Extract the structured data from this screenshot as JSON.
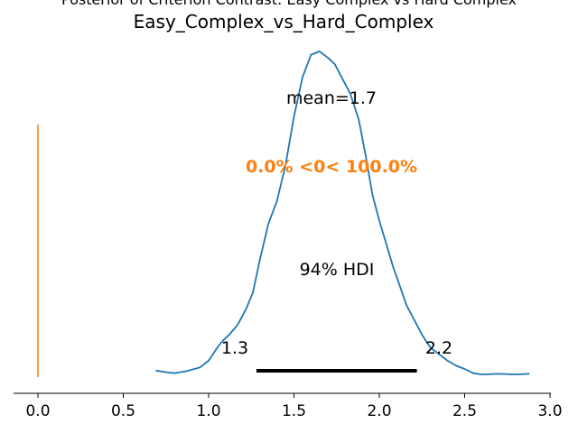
{
  "chart_data": {
    "type": "line",
    "suptitle": "Posterior of Criterion Contrast: Easy Complex vs Hard Complex",
    "title": "Easy_Complex_vs_Hard_Complex",
    "xlim": [
      -0.15,
      3.0
    ],
    "ylim": [
      0,
      1.0
    ],
    "x_ticks": [
      0.0,
      0.5,
      1.0,
      1.5,
      2.0,
      2.5,
      3.0
    ],
    "x_tick_labels": [
      "0.0",
      "0.5",
      "1.0",
      "1.5",
      "2.0",
      "2.5",
      "3.0"
    ],
    "series": [
      {
        "color": "#1f77b4",
        "x": [
          0.69,
          0.75,
          0.8,
          0.87,
          0.95,
          1.0,
          1.05,
          1.08,
          1.12,
          1.17,
          1.22,
          1.26,
          1.3,
          1.35,
          1.4,
          1.45,
          1.5,
          1.55,
          1.6,
          1.65,
          1.7,
          1.74,
          1.78,
          1.83,
          1.88,
          1.92,
          1.96,
          2.0,
          2.04,
          2.08,
          2.12,
          2.16,
          2.2,
          2.25,
          2.3,
          2.35,
          2.4,
          2.45,
          2.5,
          2.55,
          2.6,
          2.7,
          2.8,
          2.88
        ],
        "y": [
          0.02,
          0.015,
          0.012,
          0.018,
          0.03,
          0.05,
          0.09,
          0.11,
          0.13,
          0.16,
          0.21,
          0.26,
          0.36,
          0.47,
          0.54,
          0.65,
          0.8,
          0.92,
          0.99,
          1.0,
          0.98,
          0.96,
          0.92,
          0.87,
          0.79,
          0.68,
          0.56,
          0.48,
          0.41,
          0.34,
          0.28,
          0.22,
          0.18,
          0.13,
          0.09,
          0.07,
          0.05,
          0.035,
          0.025,
          0.012,
          0.008,
          0.01,
          0.008,
          0.01
        ]
      }
    ],
    "reference_line": {
      "x": 0.0,
      "color": "#ff7f0e"
    },
    "annotations": {
      "mean_label": "mean=1.7",
      "ref_label": "0.0% <0< 100.0%",
      "hdi_label": "94% HDI",
      "hdi_low_label": "1.3",
      "hdi_high_label": "2.2"
    },
    "hdi": [
      1.28,
      2.22
    ],
    "colors": {
      "kde": "#1f77b4",
      "reference": "#ff7f0e",
      "hdi": "#000000"
    }
  }
}
